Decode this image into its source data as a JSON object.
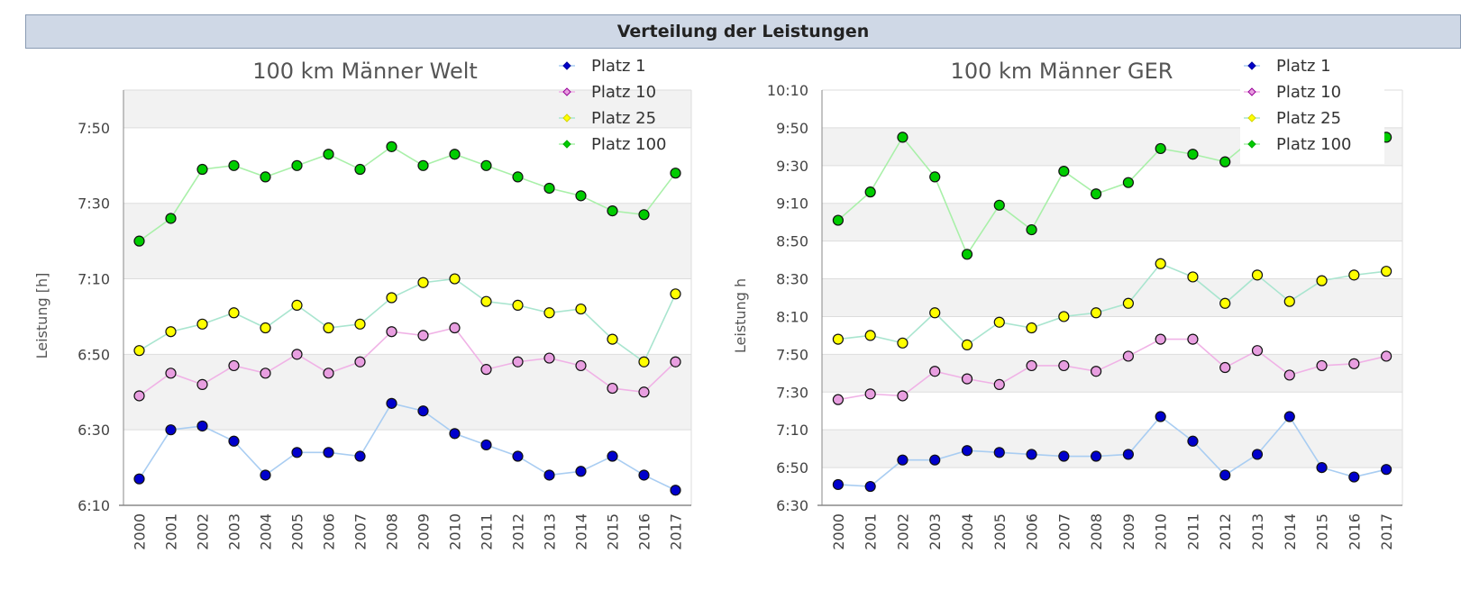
{
  "page": {
    "section_title": "Verteilung der Leistungen"
  },
  "colors": {
    "band": "#f2f2f2",
    "grid": "#dddddd",
    "axis": "#888888",
    "series": [
      {
        "line": "#a9cdf2",
        "fill": "#0000cc",
        "marker": "#000099"
      },
      {
        "line": "#f0b2e6",
        "fill": "#e89ee0",
        "marker": "#990099"
      },
      {
        "line": "#a9e5cf",
        "fill": "#ffff00",
        "marker": "#d4d400"
      },
      {
        "line": "#a9f0a9",
        "fill": "#00cc00",
        "marker": "#00aa00"
      }
    ]
  },
  "chart_data": [
    {
      "type": "line",
      "title": "100 km Männer Welt",
      "ylabel": "Leistung [h]",
      "xlabel": "",
      "ylim": [
        "6:10",
        "8:00"
      ],
      "yticks": [
        "6:10",
        "6:30",
        "6:50",
        "7:10",
        "7:30",
        "7:50"
      ],
      "grid": true,
      "legend": "top-right",
      "x": [
        "2000",
        "2001",
        "2002",
        "2003",
        "2004",
        "2005",
        "2006",
        "2007",
        "2008",
        "2009",
        "2010",
        "2011",
        "2012",
        "2013",
        "2014",
        "2015",
        "2016",
        "2017"
      ],
      "series": [
        {
          "name": "Platz 1",
          "values": [
            "6:17",
            "6:30",
            "6:31",
            "6:27",
            "6:18",
            "6:24",
            "6:24",
            "6:23",
            "6:37",
            "6:35",
            "6:29",
            "6:26",
            "6:23",
            "6:18",
            "6:19",
            "6:23",
            "6:18",
            "6:14"
          ]
        },
        {
          "name": "Platz 10",
          "values": [
            "6:39",
            "6:45",
            "6:42",
            "6:47",
            "6:45",
            "6:50",
            "6:45",
            "6:48",
            "6:56",
            "6:55",
            "6:57",
            "6:46",
            "6:48",
            "6:49",
            "6:47",
            "6:41",
            "6:40",
            "6:48"
          ]
        },
        {
          "name": "Platz 25",
          "values": [
            "6:51",
            "6:56",
            "6:58",
            "7:01",
            "6:57",
            "7:03",
            "6:57",
            "6:58",
            "7:05",
            "7:09",
            "7:10",
            "7:04",
            "7:03",
            "7:01",
            "7:02",
            "6:54",
            "6:48",
            "7:06"
          ]
        },
        {
          "name": "Platz 100",
          "values": [
            "7:20",
            "7:26",
            "7:39",
            "7:40",
            "7:37",
            "7:40",
            "7:43",
            "7:39",
            "7:45",
            "7:40",
            "7:43",
            "7:40",
            "7:37",
            "7:34",
            "7:32",
            "7:28",
            "7:27",
            "7:38"
          ]
        }
      ]
    },
    {
      "type": "line",
      "title": "100 km Männer GER",
      "ylabel": "Leistung h",
      "xlabel": "",
      "ylim": [
        "6:30",
        "10:10"
      ],
      "yticks": [
        "6:30",
        "6:50",
        "7:10",
        "7:30",
        "7:50",
        "8:10",
        "8:30",
        "8:50",
        "9:10",
        "9:30",
        "9:50",
        "10:10"
      ],
      "grid": true,
      "legend": "top-right",
      "x": [
        "2000",
        "2001",
        "2002",
        "2003",
        "2004",
        "2005",
        "2006",
        "2007",
        "2008",
        "2009",
        "2010",
        "2011",
        "2012",
        "2013",
        "2014",
        "2015",
        "2016",
        "2017"
      ],
      "series": [
        {
          "name": "Platz 1",
          "values": [
            "6:41",
            "6:40",
            "6:54",
            "6:54",
            "6:59",
            "6:58",
            "6:57",
            "6:56",
            "6:56",
            "6:57",
            "7:17",
            "7:04",
            "6:46",
            "6:57",
            "7:17",
            "6:50",
            "6:45",
            "6:49"
          ]
        },
        {
          "name": "Platz 10",
          "values": [
            "7:26",
            "7:29",
            "7:28",
            "7:41",
            "7:37",
            "7:34",
            "7:44",
            "7:44",
            "7:41",
            "7:49",
            "7:58",
            "7:58",
            "7:43",
            "7:52",
            "7:39",
            "7:44",
            "7:45",
            "7:49"
          ]
        },
        {
          "name": "Platz 25",
          "values": [
            "7:58",
            "8:00",
            "7:56",
            "8:12",
            "7:55",
            "8:07",
            "8:04",
            "8:10",
            "8:12",
            "8:17",
            "8:38",
            "8:31",
            "8:17",
            "8:32",
            "8:18",
            "8:29",
            "8:32",
            "8:34"
          ]
        },
        {
          "name": "Platz 100",
          "values": [
            "9:01",
            "9:16",
            "9:45",
            "9:24",
            "8:43",
            "9:09",
            "8:56",
            "9:27",
            "9:15",
            "9:21",
            "9:39",
            "9:36",
            "9:32",
            "9:46",
            "9:45",
            "9:45",
            "9:45",
            "9:45"
          ]
        }
      ]
    }
  ]
}
